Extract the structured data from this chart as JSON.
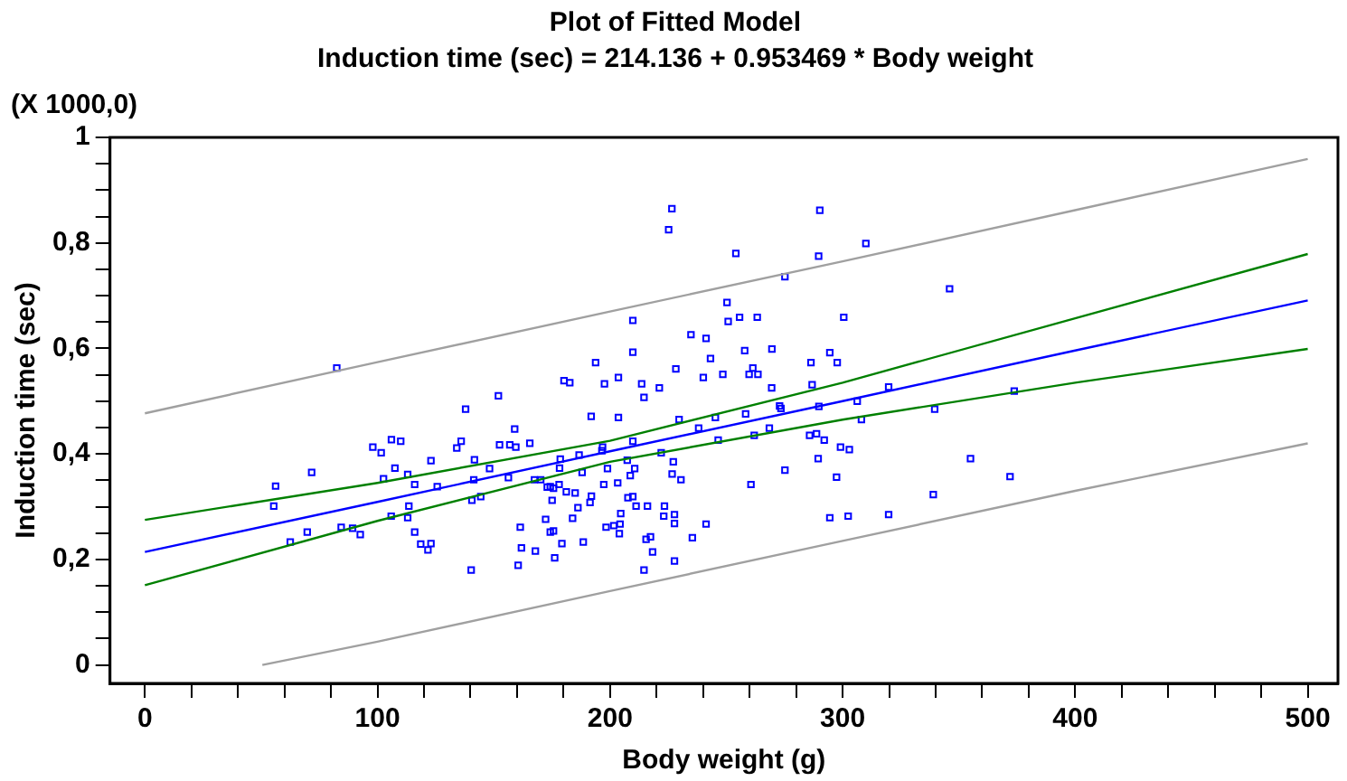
{
  "chart_data": {
    "type": "scatter",
    "title": "Plot of Fitted Model",
    "subtitle": "Induction time (sec) = 214.136 + 0.953469 * Body weight",
    "xlabel": "Body weight (g)",
    "ylabel": "Induction time (sec)",
    "annotations": [
      "(X 1000,0)"
    ],
    "xlim": [
      -15,
      513
    ],
    "ylim": [
      -0.035,
      1
    ],
    "xticks": [
      0,
      {
        "value": 20,
        "label": null
      },
      {
        "value": 40,
        "label": null
      },
      {
        "value": 60,
        "label": null
      },
      {
        "value": 80,
        "label": null
      },
      100,
      {
        "value": 120,
        "label": null
      },
      {
        "value": 140,
        "label": null
      },
      {
        "value": 160,
        "label": null
      },
      {
        "value": 180,
        "label": null
      },
      200,
      {
        "value": 220,
        "label": null
      },
      {
        "value": 240,
        "label": null
      },
      {
        "value": 260,
        "label": null
      },
      {
        "value": 280,
        "label": null
      },
      300,
      {
        "value": 320,
        "label": null
      },
      {
        "value": 340,
        "label": null
      },
      {
        "value": 360,
        "label": null
      },
      {
        "value": 380,
        "label": null
      },
      400,
      {
        "value": 420,
        "label": null
      },
      {
        "value": 440,
        "label": null
      },
      {
        "value": 460,
        "label": null
      },
      {
        "value": 480,
        "label": null
      },
      500
    ],
    "yticks": [
      0,
      {
        "value": 0.05,
        "label": null
      },
      {
        "value": 0.1,
        "label": null
      },
      {
        "value": 0.15,
        "label": null
      },
      {
        "value": 0.2,
        "label": "0,2"
      },
      {
        "value": 0.25,
        "label": null
      },
      {
        "value": 0.3,
        "label": null
      },
      {
        "value": 0.35,
        "label": null
      },
      {
        "value": 0.4,
        "label": "0,4"
      },
      {
        "value": 0.45,
        "label": null
      },
      {
        "value": 0.5,
        "label": null
      },
      {
        "value": 0.55,
        "label": null
      },
      {
        "value": 0.6,
        "label": "0,6"
      },
      {
        "value": 0.65,
        "label": null
      },
      {
        "value": 0.7,
        "label": null
      },
      {
        "value": 0.75,
        "label": null
      },
      {
        "value": 0.8,
        "label": "0,8"
      },
      {
        "value": 0.85,
        "label": null
      },
      {
        "value": 0.9,
        "label": null
      },
      {
        "value": 0.95,
        "label": null
      },
      1
    ],
    "grid": false,
    "legend": false,
    "series": [
      {
        "type": "line",
        "color": "#a0a0a0",
        "marker": "none",
        "line_style": "solid",
        "x": [
          0,
          100,
          200,
          300,
          400,
          500
        ],
        "values": [
          0.477,
          0.574,
          0.67,
          0.765,
          0.862,
          0.959
        ]
      },
      {
        "type": "line",
        "color": "#a0a0a0",
        "marker": "none",
        "line_style": "solid",
        "x": [
          50.5,
          100,
          200,
          300,
          400,
          500
        ],
        "values": [
          0,
          0.044,
          0.14,
          0.235,
          0.33,
          0.42
        ]
      },
      {
        "type": "line",
        "color": "#008000",
        "marker": "none",
        "line_style": "solid",
        "x": [
          0,
          100,
          200,
          300,
          400,
          500
        ],
        "values": [
          0.275,
          0.345,
          0.425,
          0.535,
          0.657,
          0.779
        ]
      },
      {
        "type": "line",
        "color": "#008000",
        "marker": "none",
        "line_style": "solid",
        "x": [
          0,
          100,
          200,
          300,
          400,
          500
        ],
        "values": [
          0.151,
          0.273,
          0.385,
          0.465,
          0.535,
          0.599
        ]
      },
      {
        "type": "line",
        "color": "#0000ff",
        "marker": "none",
        "line_style": "solid",
        "x": [
          0,
          100,
          200,
          300,
          400,
          500
        ],
        "values": [
          0.214,
          0.309,
          0.405,
          0.5,
          0.596,
          0.691
        ]
      },
      {
        "color": "#0000ff",
        "marker": "square",
        "x": [
          82.5,
          98,
          101.6,
          106,
          110,
          107.5,
          102.6,
          113,
          116,
          56.2,
          71.7,
          55.4,
          113.5,
          113,
          105.9,
          116,
          118.6,
          84.4,
          89.3,
          92.6,
          69.8,
          62.5,
          209.8,
          209.8,
          193.8,
          203.6,
          197.6,
          180.2,
          182.7,
          213.6,
          214.6,
          152,
          137.9,
          191.9,
          203.6,
          159,
          136,
          134.1,
          152.5,
          156.9,
          159.5,
          165.5,
          123,
          141.7,
          148.2,
          125.7,
          141.4,
          156.3,
          167.5,
          170.2,
          178.6,
          186.7,
          196.5,
          196.8,
          209.8,
          207.4,
          210.6,
          208.7,
          188,
          198.9,
          178.3,
          178.1,
          173,
          175.7,
          174.3,
          181.2,
          185,
          192,
          203.3,
          197.3,
          207.7,
          209.8,
          211.2,
          216.1,
          191.4,
          175.1,
          186.2,
          140.6,
          144.4,
          123,
          121.7,
          183.9,
          172.3,
          161.4,
          204.6,
          204.3,
          201.6,
          198.3,
          204,
          175.7,
          174.3,
          161.9,
          167.9,
          179.3,
          188.5,
          215.5,
          160.5,
          176.2,
          140.3,
          214.6,
          226.6,
          225.2,
          290.2,
          310,
          254.1,
          289.7,
          275.2,
          250.3,
          250.8,
          255.7,
          263.3,
          300.5,
          234.8,
          241.3,
          257.9,
          269.6,
          243.2,
          294.5,
          286.4,
          297.7,
          228.3,
          261.4,
          240.1,
          248.5,
          259.8,
          263.6,
          221.2,
          269.5,
          286.9,
          319.8,
          229.7,
          238.1,
          245.3,
          258.3,
          272.9,
          273.5,
          289.8,
          306.3,
          308.1,
          246.5,
          262,
          268.5,
          285.8,
          288.8,
          292.1,
          299.1,
          302.9,
          289.5,
          297.4,
          222,
          227.2,
          226.7,
          230.5,
          275.2,
          260.6,
          223.4,
          223.1,
          227.7,
          227.7,
          241.3,
          235.4,
          217.4,
          218.3,
          227.7,
          294.5,
          302.4,
          319.8,
          339,
          346,
          339.6,
          355,
          372,
          373.8
        ],
        "values": [
          0.563,
          0.413,
          0.402,
          0.427,
          0.424,
          0.373,
          0.353,
          0.361,
          0.342,
          0.339,
          0.365,
          0.301,
          0.301,
          0.279,
          0.282,
          0.252,
          0.229,
          0.261,
          0.259,
          0.247,
          0.252,
          0.233,
          0.653,
          0.593,
          0.573,
          0.545,
          0.533,
          0.539,
          0.535,
          0.533,
          0.507,
          0.51,
          0.485,
          0.471,
          0.469,
          0.447,
          0.424,
          0.411,
          0.417,
          0.417,
          0.413,
          0.42,
          0.387,
          0.389,
          0.372,
          0.338,
          0.351,
          0.355,
          0.351,
          0.351,
          0.39,
          0.398,
          0.406,
          0.413,
          0.424,
          0.388,
          0.372,
          0.359,
          0.365,
          0.372,
          0.373,
          0.342,
          0.337,
          0.335,
          0.338,
          0.328,
          0.326,
          0.32,
          0.345,
          0.342,
          0.317,
          0.319,
          0.301,
          0.301,
          0.308,
          0.312,
          0.298,
          0.312,
          0.319,
          0.23,
          0.218,
          0.278,
          0.276,
          0.261,
          0.287,
          0.267,
          0.264,
          0.261,
          0.249,
          0.254,
          0.252,
          0.222,
          0.216,
          0.23,
          0.233,
          0.238,
          0.189,
          0.203,
          0.18,
          0.18,
          0.865,
          0.825,
          0.862,
          0.799,
          0.78,
          0.775,
          0.736,
          0.687,
          0.651,
          0.659,
          0.659,
          0.659,
          0.626,
          0.619,
          0.596,
          0.599,
          0.581,
          0.592,
          0.573,
          0.573,
          0.561,
          0.563,
          0.545,
          0.551,
          0.551,
          0.551,
          0.525,
          0.525,
          0.531,
          0.527,
          0.465,
          0.449,
          0.469,
          0.476,
          0.491,
          0.486,
          0.49,
          0.5,
          0.465,
          0.426,
          0.435,
          0.449,
          0.435,
          0.438,
          0.426,
          0.413,
          0.408,
          0.391,
          0.356,
          0.402,
          0.385,
          0.362,
          0.351,
          0.369,
          0.342,
          0.301,
          0.282,
          0.285,
          0.268,
          0.267,
          0.241,
          0.243,
          0.214,
          0.197,
          0.279,
          0.282,
          0.285,
          0.323,
          0.713,
          0.485,
          0.391,
          0.357,
          0.519
        ]
      }
    ]
  }
}
